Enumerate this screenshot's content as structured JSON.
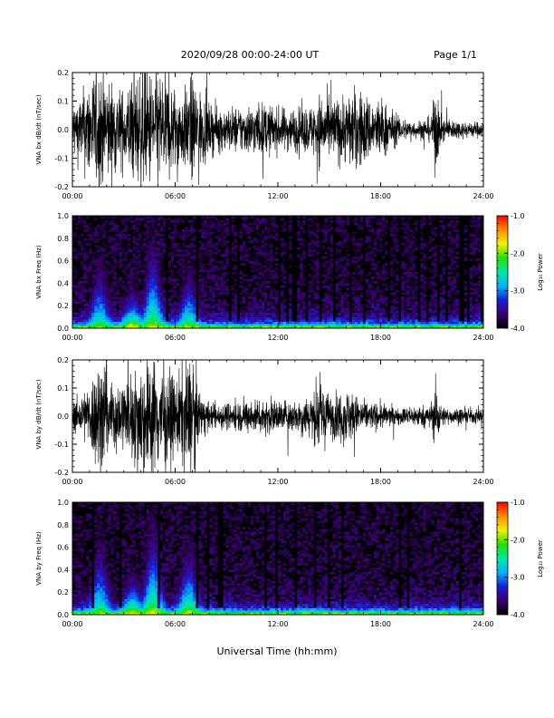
{
  "header": {
    "title": "2020/09/28  00:00-24:00 UT",
    "page": "Page 1/1"
  },
  "footer": {
    "xlabel": "Universal Time (hh:mm)"
  },
  "colors": {
    "waveform": "#000000",
    "colormap": [
      "#000000",
      "#3a0070",
      "#1a1fd6",
      "#00b4ff",
      "#00e8a0",
      "#22e000",
      "#f2f200",
      "#ff8c00",
      "#ff0000"
    ]
  },
  "chart_data": [
    {
      "type": "line",
      "panel": "bx-waveform",
      "ylabel": "VNA bx dB/dt (nT/sec)",
      "xlim": [
        0,
        24
      ],
      "ylim": [
        -0.2,
        0.2
      ],
      "xticks": [
        "00:00",
        "06:00",
        "12:00",
        "18:00",
        "24:00"
      ],
      "yticks": [
        "-0.2",
        "-0.1",
        "0.0",
        "0.1",
        "0.2"
      ],
      "envelope": {
        "x_hours": [
          0,
          0.5,
          1,
          1.5,
          1.8,
          2.2,
          3,
          3.5,
          4,
          4.5,
          5,
          5.5,
          6,
          6.5,
          7,
          7.5,
          8,
          9,
          10,
          11,
          12,
          13,
          14,
          14.5,
          15,
          15.5,
          16,
          16.5,
          17,
          17.5,
          18,
          19,
          20,
          21,
          21.2,
          21.5,
          22,
          23,
          24
        ],
        "amplitude": [
          0.1,
          0.13,
          0.2,
          0.22,
          0.22,
          0.18,
          0.14,
          0.2,
          0.22,
          0.22,
          0.22,
          0.2,
          0.16,
          0.14,
          0.2,
          0.14,
          0.09,
          0.08,
          0.09,
          0.1,
          0.08,
          0.08,
          0.09,
          0.14,
          0.11,
          0.12,
          0.13,
          0.15,
          0.14,
          0.11,
          0.12,
          0.05,
          0.03,
          0.05,
          0.18,
          0.05,
          0.04,
          0.03,
          0.03
        ]
      }
    },
    {
      "type": "heatmap",
      "panel": "bx-spectrogram",
      "ylabel": "VNA bx Freq (Hz)",
      "xlim": [
        0,
        24
      ],
      "ylim": [
        0.0,
        1.0
      ],
      "xticks": [
        "00:00",
        "06:00",
        "12:00",
        "18:00",
        "24:00"
      ],
      "yticks": [
        "0.0",
        "0.2",
        "0.4",
        "0.6",
        "0.8",
        "1.0"
      ],
      "colorbar": {
        "label": "Log₁₀ Power",
        "range": [
          -4.0,
          -1.0
        ],
        "ticks": [
          "-1.0",
          "-2.0",
          "-3.0",
          "-4.0"
        ]
      },
      "bursts": [
        {
          "t_hours": 1.6,
          "peak": -2.0,
          "reach_hz": 0.7
        },
        {
          "t_hours": 3.5,
          "peak": -1.6,
          "reach_hz": 0.4
        },
        {
          "t_hours": 4.7,
          "peak": -1.8,
          "reach_hz": 0.9
        },
        {
          "t_hours": 6.8,
          "peak": -1.9,
          "reach_hz": 0.6
        },
        {
          "t_hours": 11.2,
          "peak": -3.0,
          "reach_hz": 0.2
        },
        {
          "t_hours": 14.2,
          "peak": -2.7,
          "reach_hz": 0.3
        },
        {
          "t_hours": 21.2,
          "peak": -3.0,
          "reach_hz": 0.15
        }
      ]
    },
    {
      "type": "line",
      "panel": "by-waveform",
      "ylabel": "VNA by dB/dt (nT/sec)",
      "xlim": [
        0,
        24
      ],
      "ylim": [
        -0.2,
        0.2
      ],
      "xticks": [
        "00:00",
        "06:00",
        "12:00",
        "18:00",
        "24:00"
      ],
      "yticks": [
        "-0.2",
        "-0.1",
        "0.0",
        "0.1",
        "0.2"
      ],
      "envelope": {
        "x_hours": [
          0,
          0.5,
          1,
          1.5,
          1.8,
          2.2,
          3,
          3.5,
          4,
          4.5,
          5,
          5.5,
          6,
          6.5,
          7,
          7.5,
          8,
          9,
          10,
          11,
          12,
          13,
          14,
          14.5,
          15,
          15.5,
          16,
          16.5,
          17,
          17.5,
          18,
          19,
          20,
          21,
          21.2,
          21.5,
          22,
          23,
          24
        ],
        "amplitude": [
          0.05,
          0.08,
          0.12,
          0.22,
          0.22,
          0.12,
          0.14,
          0.16,
          0.22,
          0.22,
          0.22,
          0.18,
          0.14,
          0.2,
          0.22,
          0.08,
          0.05,
          0.05,
          0.06,
          0.07,
          0.06,
          0.06,
          0.09,
          0.14,
          0.08,
          0.09,
          0.11,
          0.08,
          0.06,
          0.05,
          0.05,
          0.03,
          0.04,
          0.04,
          0.15,
          0.04,
          0.03,
          0.03,
          0.03
        ]
      }
    },
    {
      "type": "heatmap",
      "panel": "by-spectrogram",
      "ylabel": "VNA by Freq (Hz)",
      "xlim": [
        0,
        24
      ],
      "ylim": [
        0.0,
        1.0
      ],
      "xticks": [
        "00:00",
        "06:00",
        "12:00",
        "18:00",
        "24:00"
      ],
      "yticks": [
        "0.0",
        "0.2",
        "0.4",
        "0.6",
        "0.8",
        "1.0"
      ],
      "colorbar": {
        "label": "Log₁₀ Power",
        "range": [
          -4.0,
          -1.0
        ],
        "ticks": [
          "-1.0",
          "-2.0",
          "-3.0",
          "-4.0"
        ]
      },
      "bursts": [
        {
          "t_hours": 1.6,
          "peak": -2.0,
          "reach_hz": 0.8
        },
        {
          "t_hours": 3.5,
          "peak": -1.6,
          "reach_hz": 0.4
        },
        {
          "t_hours": 4.7,
          "peak": -1.7,
          "reach_hz": 0.9
        },
        {
          "t_hours": 6.8,
          "peak": -1.8,
          "reach_hz": 0.7
        },
        {
          "t_hours": 11.2,
          "peak": -3.0,
          "reach_hz": 0.2
        },
        {
          "t_hours": 14.2,
          "peak": -2.6,
          "reach_hz": 0.3
        },
        {
          "t_hours": 21.2,
          "peak": -3.0,
          "reach_hz": 0.3
        }
      ]
    }
  ]
}
